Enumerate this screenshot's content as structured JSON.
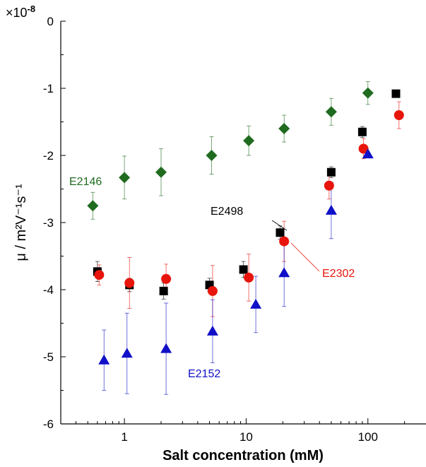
{
  "chart_data": {
    "type": "scatter",
    "xlabel": "Salt concentration (mM)",
    "ylabel": "μ / m²V⁻¹s⁻¹",
    "x_scale": "log",
    "xlim": [
      0.3,
      300
    ],
    "ylim": [
      -6,
      0
    ],
    "y_multiplier": "×10",
    "y_multiplier_exponent": "-8",
    "x_tick_labels": [
      "1",
      "10",
      "100"
    ],
    "y_tick_labels": [
      "0",
      "-1",
      "-2",
      "-3",
      "-4",
      "-5",
      "-6"
    ],
    "grid": false,
    "series": [
      {
        "name": "E2146",
        "marker": "diamond",
        "color": "#1f6b1f",
        "points": [
          {
            "x": 0.55,
            "y": -2.75,
            "err": 0.2
          },
          {
            "x": 1.0,
            "y": -2.33,
            "err": 0.32
          },
          {
            "x": 2.0,
            "y": -2.25,
            "err": 0.35
          },
          {
            "x": 5.2,
            "y": -2.0,
            "err": 0.28
          },
          {
            "x": 10.5,
            "y": -1.78,
            "err": 0.22
          },
          {
            "x": 20.5,
            "y": -1.6,
            "err": 0.2
          },
          {
            "x": 50,
            "y": -1.35,
            "err": 0.2
          },
          {
            "x": 100,
            "y": -1.07,
            "err": 0.17
          }
        ]
      },
      {
        "name": "E2498",
        "marker": "square",
        "color": "#000000",
        "points": [
          {
            "x": 0.6,
            "y": -3.73,
            "err": 0.15
          },
          {
            "x": 1.1,
            "y": -3.93,
            "err": 0.1
          },
          {
            "x": 2.1,
            "y": -4.02,
            "err": 0.12
          },
          {
            "x": 5.0,
            "y": -3.93,
            "err": 0.1
          },
          {
            "x": 9.5,
            "y": -3.7,
            "err": 0.12
          },
          {
            "x": 19,
            "y": -3.15,
            "err": 0.1
          },
          {
            "x": 50,
            "y": -2.25,
            "err": 0.08
          },
          {
            "x": 90,
            "y": -1.65,
            "err": 0.08
          },
          {
            "x": 170,
            "y": -1.08,
            "err": 0.05
          }
        ]
      },
      {
        "name": "E2302",
        "marker": "circle",
        "color": "#e8150c",
        "points": [
          {
            "x": 0.62,
            "y": -3.78,
            "err": 0.15
          },
          {
            "x": 1.1,
            "y": -3.9,
            "err": 0.38
          },
          {
            "x": 2.2,
            "y": -3.84,
            "err": 0.22
          },
          {
            "x": 5.3,
            "y": -4.02,
            "err": 0.38
          },
          {
            "x": 10.5,
            "y": -3.82,
            "err": 0.35
          },
          {
            "x": 20.5,
            "y": -3.28,
            "err": 0.3
          },
          {
            "x": 48,
            "y": -2.45,
            "err": 0.2
          },
          {
            "x": 92,
            "y": -1.9,
            "err": 0.15
          },
          {
            "x": 180,
            "y": -1.4,
            "err": 0.2
          }
        ]
      },
      {
        "name": "E2152",
        "marker": "triangle",
        "color": "#1010c8",
        "points": [
          {
            "x": 0.68,
            "y": -5.05,
            "err": 0.45
          },
          {
            "x": 1.05,
            "y": -4.95,
            "err": 0.6
          },
          {
            "x": 2.2,
            "y": -4.88,
            "err": 0.68
          },
          {
            "x": 5.3,
            "y": -4.62,
            "err": 0.47
          },
          {
            "x": 12,
            "y": -4.22,
            "err": 0.42
          },
          {
            "x": 20.5,
            "y": -3.75,
            "err": 0.5
          },
          {
            "x": 50,
            "y": -2.82,
            "err": 0.42
          },
          {
            "x": 100,
            "y": -1.98,
            "err": 0.0
          }
        ]
      }
    ],
    "annotations": [
      {
        "text": "E2146",
        "series": "E2146"
      },
      {
        "text": "E2498",
        "series": "E2498"
      },
      {
        "text": "E2302",
        "series": "E2302"
      },
      {
        "text": "E2152",
        "series": "E2152"
      }
    ]
  }
}
